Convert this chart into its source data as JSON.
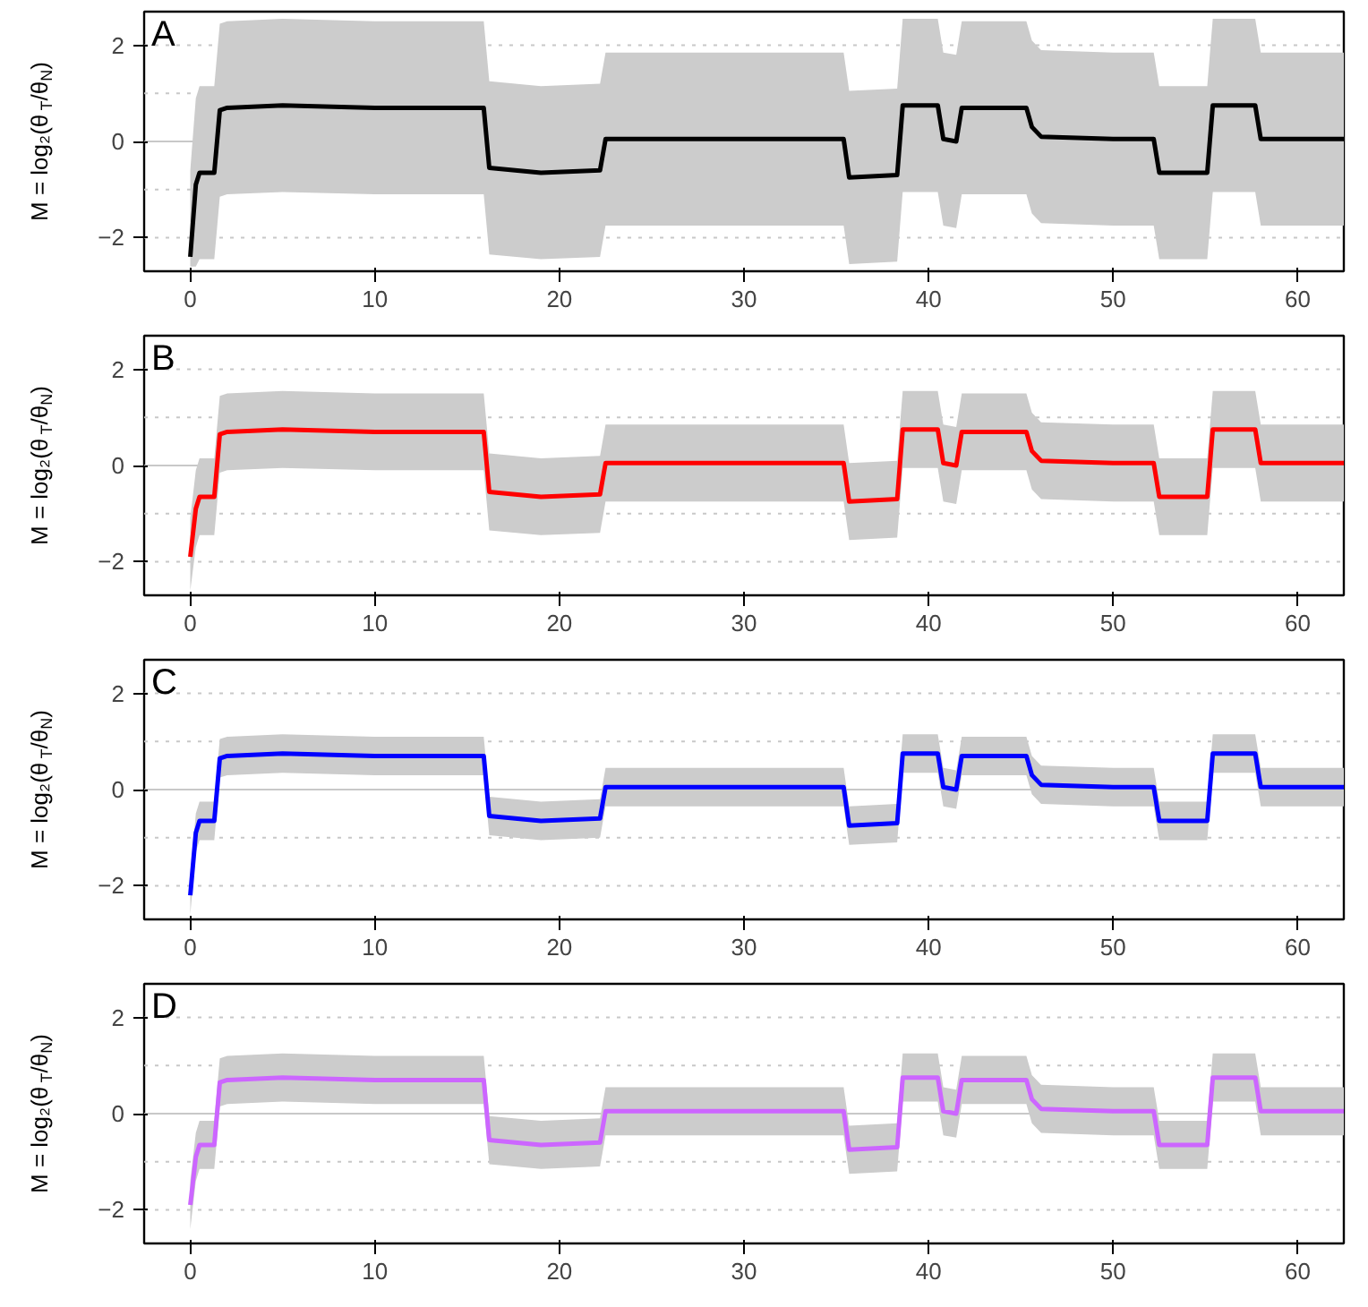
{
  "chart_data": [
    {
      "type": "line",
      "title": "A",
      "ylabel": "M = log₂(θ$_{T}$/θ$_{N}$)",
      "xlim": [
        -2.5,
        62.5
      ],
      "ylim": [
        -2.7,
        2.7
      ],
      "xticks": [
        0,
        10,
        20,
        30,
        40,
        50,
        60
      ],
      "yticks": [
        -2,
        0,
        2
      ],
      "grid": false,
      "line_style": "solid",
      "marker": "none",
      "ref_lines": [
        {
          "axis": "y",
          "value": 0,
          "color": "#c8c8c8",
          "line_style": "solid"
        },
        {
          "axis": "y",
          "value": 1,
          "color": "#c8c8c8",
          "line_style": "dotted"
        },
        {
          "axis": "y",
          "value": -1,
          "color": "#c8c8c8",
          "line_style": "dotted"
        },
        {
          "axis": "y",
          "value": 2,
          "color": "#c8c8c8",
          "line_style": "dotted"
        },
        {
          "axis": "y",
          "value": -2,
          "color": "#c8c8c8",
          "line_style": "dotted"
        }
      ],
      "x": [
        0,
        0.3,
        0.5,
        1.3,
        1.6,
        2,
        5,
        10,
        15.9,
        16.2,
        19,
        22.2,
        22.5,
        30,
        35.4,
        35.7,
        38.3,
        38.6,
        40.5,
        40.8,
        41.5,
        41.8,
        45.3,
        45.6,
        46.1,
        50,
        52.2,
        52.5,
        55.1,
        55.4,
        57.7,
        58,
        62.5
      ],
      "series": [
        {
          "color": "#000000",
          "values": [
            -2.4,
            -0.9,
            -0.65,
            -0.65,
            0.65,
            0.7,
            0.75,
            0.7,
            0.7,
            -0.55,
            -0.65,
            -0.6,
            0.05,
            0.05,
            0.05,
            -0.75,
            -0.7,
            0.75,
            0.75,
            0.05,
            0.0,
            0.7,
            0.7,
            0.3,
            0.1,
            0.05,
            0.05,
            -0.65,
            -0.65,
            0.75,
            0.75,
            0.05,
            0.05
          ],
          "upper": [
            -0.6,
            0.9,
            1.15,
            1.15,
            2.45,
            2.5,
            2.55,
            2.5,
            2.5,
            1.25,
            1.15,
            1.2,
            1.85,
            1.85,
            1.85,
            1.05,
            1.1,
            2.55,
            2.55,
            1.85,
            1.8,
            2.5,
            2.5,
            2.1,
            1.9,
            1.85,
            1.85,
            1.15,
            1.15,
            2.55,
            2.55,
            1.85,
            1.85
          ],
          "lower": [
            -2.6,
            -2.6,
            -2.45,
            -2.45,
            -1.15,
            -1.1,
            -1.05,
            -1.1,
            -1.1,
            -2.35,
            -2.45,
            -2.4,
            -1.75,
            -1.75,
            -1.75,
            -2.55,
            -2.5,
            -1.05,
            -1.05,
            -1.75,
            -1.8,
            -1.1,
            -1.1,
            -1.5,
            -1.7,
            -1.75,
            -1.75,
            -2.45,
            -2.45,
            -1.05,
            -1.05,
            -1.75,
            -1.75
          ]
        }
      ]
    },
    {
      "type": "line",
      "title": "B",
      "ylabel": "M = log₂(θ$_{T}$/θ$_{N}$)",
      "xlim": [
        -2.5,
        62.5
      ],
      "ylim": [
        -2.7,
        2.7
      ],
      "xticks": [
        0,
        10,
        20,
        30,
        40,
        50,
        60
      ],
      "yticks": [
        -2,
        0,
        2
      ],
      "grid": false,
      "line_style": "solid",
      "marker": "none",
      "ref_lines": [
        {
          "axis": "y",
          "value": 0,
          "color": "#c8c8c8",
          "line_style": "solid"
        },
        {
          "axis": "y",
          "value": 1,
          "color": "#c8c8c8",
          "line_style": "dotted"
        },
        {
          "axis": "y",
          "value": -1,
          "color": "#c8c8c8",
          "line_style": "dotted"
        },
        {
          "axis": "y",
          "value": 2,
          "color": "#c8c8c8",
          "line_style": "dotted"
        },
        {
          "axis": "y",
          "value": -2,
          "color": "#c8c8c8",
          "line_style": "dotted"
        }
      ],
      "x": [
        0,
        0.3,
        0.5,
        1.3,
        1.6,
        2,
        5,
        10,
        15.9,
        16.2,
        19,
        22.2,
        22.5,
        30,
        35.4,
        35.7,
        38.3,
        38.6,
        40.5,
        40.8,
        41.5,
        41.8,
        45.3,
        45.6,
        46.1,
        50,
        52.2,
        52.5,
        55.1,
        55.4,
        57.7,
        58,
        62.5
      ],
      "series": [
        {
          "color": "#ff0000",
          "values": [
            -1.9,
            -0.9,
            -0.65,
            -0.65,
            0.65,
            0.7,
            0.75,
            0.7,
            0.7,
            -0.55,
            -0.65,
            -0.6,
            0.05,
            0.05,
            0.05,
            -0.75,
            -0.7,
            0.75,
            0.75,
            0.05,
            0.0,
            0.7,
            0.7,
            0.3,
            0.1,
            0.05,
            0.05,
            -0.65,
            -0.65,
            0.75,
            0.75,
            0.05,
            0.05
          ],
          "upper": [
            -1.1,
            -0.1,
            0.15,
            0.15,
            1.45,
            1.5,
            1.55,
            1.5,
            1.5,
            0.25,
            0.15,
            0.2,
            0.85,
            0.85,
            0.85,
            0.05,
            0.1,
            1.55,
            1.55,
            0.85,
            0.8,
            1.5,
            1.5,
            1.1,
            0.9,
            0.85,
            0.85,
            0.15,
            0.15,
            1.55,
            1.55,
            0.85,
            0.85
          ],
          "lower": [
            -2.6,
            -1.7,
            -1.45,
            -1.45,
            -0.15,
            -0.1,
            -0.05,
            -0.1,
            -0.1,
            -1.35,
            -1.45,
            -1.4,
            -0.75,
            -0.75,
            -0.75,
            -1.55,
            -1.5,
            -0.05,
            -0.05,
            -0.75,
            -0.8,
            -0.1,
            -0.1,
            -0.5,
            -0.7,
            -0.75,
            -0.75,
            -1.45,
            -1.45,
            -0.05,
            -0.05,
            -0.75,
            -0.75
          ]
        }
      ]
    },
    {
      "type": "line",
      "title": "C",
      "ylabel": "M = log₂(θ$_{T}$/θ$_{N}$)",
      "xlim": [
        -2.5,
        62.5
      ],
      "ylim": [
        -2.7,
        2.7
      ],
      "xticks": [
        0,
        10,
        20,
        30,
        40,
        50,
        60
      ],
      "yticks": [
        -2,
        0,
        2
      ],
      "grid": false,
      "line_style": "solid",
      "marker": "none",
      "ref_lines": [
        {
          "axis": "y",
          "value": 0,
          "color": "#c8c8c8",
          "line_style": "solid"
        },
        {
          "axis": "y",
          "value": 1,
          "color": "#c8c8c8",
          "line_style": "dotted"
        },
        {
          "axis": "y",
          "value": -1,
          "color": "#c8c8c8",
          "line_style": "dotted"
        },
        {
          "axis": "y",
          "value": 2,
          "color": "#c8c8c8",
          "line_style": "dotted"
        },
        {
          "axis": "y",
          "value": -2,
          "color": "#c8c8c8",
          "line_style": "dotted"
        }
      ],
      "x": [
        0,
        0.3,
        0.5,
        1.3,
        1.6,
        2,
        5,
        10,
        15.9,
        16.2,
        19,
        22.2,
        22.5,
        30,
        35.4,
        35.7,
        38.3,
        38.6,
        40.5,
        40.8,
        41.5,
        41.8,
        45.3,
        45.6,
        46.1,
        50,
        52.2,
        52.5,
        55.1,
        55.4,
        57.7,
        58,
        62.5
      ],
      "series": [
        {
          "color": "#0000ff",
          "values": [
            -2.2,
            -0.9,
            -0.65,
            -0.65,
            0.65,
            0.7,
            0.75,
            0.7,
            0.7,
            -0.55,
            -0.65,
            -0.6,
            0.05,
            0.05,
            0.05,
            -0.75,
            -0.7,
            0.75,
            0.75,
            0.05,
            0.0,
            0.7,
            0.7,
            0.3,
            0.1,
            0.05,
            0.05,
            -0.65,
            -0.65,
            0.75,
            0.75,
            0.05,
            0.05
          ],
          "upper": [
            -1.8,
            -0.5,
            -0.25,
            -0.25,
            1.05,
            1.1,
            1.15,
            1.1,
            1.1,
            -0.15,
            -0.25,
            -0.2,
            0.45,
            0.45,
            0.45,
            -0.35,
            -0.3,
            1.15,
            1.15,
            0.45,
            0.4,
            1.1,
            1.1,
            0.7,
            0.5,
            0.45,
            0.45,
            -0.25,
            -0.25,
            1.15,
            1.15,
            0.45,
            0.45
          ],
          "lower": [
            -2.6,
            -1.3,
            -1.05,
            -1.05,
            0.25,
            0.3,
            0.35,
            0.3,
            0.3,
            -0.95,
            -1.05,
            -1.0,
            -0.35,
            -0.35,
            -0.35,
            -1.15,
            -1.1,
            0.35,
            0.35,
            -0.35,
            -0.4,
            0.3,
            0.3,
            -0.1,
            -0.3,
            -0.35,
            -0.35,
            -1.05,
            -1.05,
            0.35,
            0.35,
            -0.35,
            -0.35
          ]
        }
      ]
    },
    {
      "type": "line",
      "title": "D",
      "ylabel": "M = log₂(θ$_{T}$/θ$_{N}$)",
      "xlim": [
        -2.5,
        62.5
      ],
      "ylim": [
        -2.7,
        2.7
      ],
      "xticks": [
        0,
        10,
        20,
        30,
        40,
        50,
        60
      ],
      "yticks": [
        -2,
        0,
        2
      ],
      "grid": false,
      "line_style": "solid",
      "marker": "none",
      "ref_lines": [
        {
          "axis": "y",
          "value": 0,
          "color": "#c8c8c8",
          "line_style": "solid"
        },
        {
          "axis": "y",
          "value": 1,
          "color": "#c8c8c8",
          "line_style": "dotted"
        },
        {
          "axis": "y",
          "value": -1,
          "color": "#c8c8c8",
          "line_style": "dotted"
        },
        {
          "axis": "y",
          "value": 2,
          "color": "#c8c8c8",
          "line_style": "dotted"
        },
        {
          "axis": "y",
          "value": -2,
          "color": "#c8c8c8",
          "line_style": "dotted"
        }
      ],
      "x": [
        0,
        0.3,
        0.5,
        1.3,
        1.6,
        2,
        5,
        10,
        15.9,
        16.2,
        19,
        22.2,
        22.5,
        30,
        35.4,
        35.7,
        38.3,
        38.6,
        40.5,
        40.8,
        41.5,
        41.8,
        45.3,
        45.6,
        46.1,
        50,
        52.2,
        52.5,
        55.1,
        55.4,
        57.7,
        58,
        62.5
      ],
      "series": [
        {
          "color": "#cc66ff",
          "values": [
            -1.9,
            -0.9,
            -0.65,
            -0.65,
            0.65,
            0.7,
            0.75,
            0.7,
            0.7,
            -0.55,
            -0.65,
            -0.6,
            0.05,
            0.05,
            0.05,
            -0.75,
            -0.7,
            0.75,
            0.75,
            0.05,
            0.0,
            0.7,
            0.7,
            0.3,
            0.1,
            0.05,
            0.05,
            -0.65,
            -0.65,
            0.75,
            0.75,
            0.05,
            0.05
          ],
          "upper": [
            -1.4,
            -0.4,
            -0.15,
            -0.15,
            1.15,
            1.2,
            1.25,
            1.2,
            1.2,
            -0.05,
            -0.15,
            -0.1,
            0.55,
            0.55,
            0.55,
            -0.25,
            -0.2,
            1.25,
            1.25,
            0.55,
            0.5,
            1.2,
            1.2,
            0.8,
            0.6,
            0.55,
            0.55,
            -0.15,
            -0.15,
            1.25,
            1.25,
            0.55,
            0.55
          ],
          "lower": [
            -2.4,
            -1.4,
            -1.15,
            -1.15,
            0.15,
            0.2,
            0.25,
            0.2,
            0.2,
            -1.05,
            -1.15,
            -1.1,
            -0.45,
            -0.45,
            -0.45,
            -1.25,
            -1.2,
            0.25,
            0.25,
            -0.45,
            -0.5,
            0.2,
            0.2,
            -0.2,
            -0.4,
            -0.45,
            -0.45,
            -1.15,
            -1.15,
            0.25,
            0.25,
            -0.45,
            -0.45
          ]
        }
      ]
    }
  ]
}
